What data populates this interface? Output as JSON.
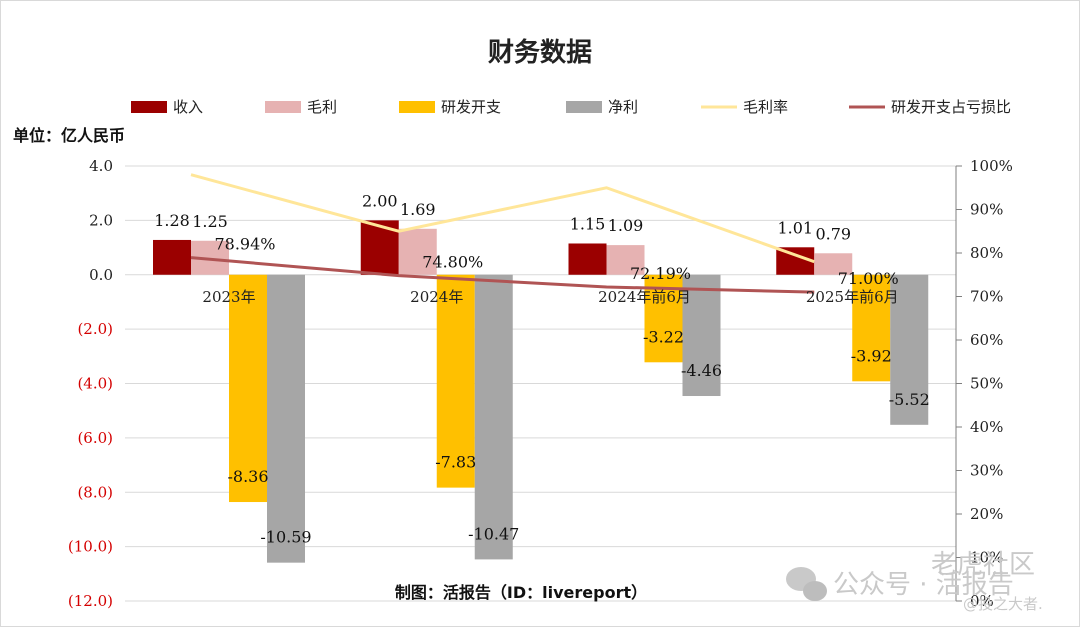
{
  "chart_data": {
    "type": "bar",
    "title": "财务数据",
    "unit_label": "单位：亿人民币",
    "categories": [
      "2023年",
      "2024年",
      "2024年前6月",
      "2025年前6月"
    ],
    "series": [
      {
        "name": "收入",
        "kind": "bar",
        "axis": "left",
        "color": "#9b0000",
        "values": [
          1.28,
          2.0,
          1.15,
          1.01
        ],
        "labels": [
          "1.28",
          "2.00",
          "1.15",
          "1.01"
        ]
      },
      {
        "name": "毛利",
        "kind": "bar",
        "axis": "left",
        "color": "#e6b2b2",
        "values": [
          1.25,
          1.69,
          1.09,
          0.79
        ],
        "labels": [
          "1.25",
          "1.69",
          "1.09",
          "0.79"
        ]
      },
      {
        "name": "研发开支",
        "kind": "bar",
        "axis": "left",
        "color": "#ffc000",
        "values": [
          -8.36,
          -7.83,
          -3.22,
          -3.92
        ],
        "labels": [
          "-8.36",
          "-7.83",
          "-3.22",
          "-3.92"
        ]
      },
      {
        "name": "净利",
        "kind": "bar",
        "axis": "left",
        "color": "#a6a6a6",
        "values": [
          -10.59,
          -10.47,
          -4.46,
          -5.52
        ],
        "labels": [
          "-10.59",
          "-10.47",
          "-4.46",
          "-5.52"
        ]
      },
      {
        "name": "毛利率",
        "kind": "line",
        "axis": "right",
        "color": "#ffe699",
        "values": [
          98,
          85,
          95,
          78
        ],
        "labels": []
      },
      {
        "name": "研发开支占亏损比",
        "kind": "line",
        "axis": "right",
        "color": "#b05454",
        "values": [
          78.94,
          74.8,
          72.19,
          71.0
        ],
        "labels": [
          "78.94%",
          "74.80%",
          "72.19%",
          "71.00%"
        ]
      }
    ],
    "y_left": {
      "min": -12,
      "max": 4,
      "step": 2,
      "ticks": [
        "4.0",
        "2.0",
        "0.0",
        "(2.0)",
        "(4.0)",
        "(6.0)",
        "(8.0)",
        "(10.0)",
        "(12.0)"
      ]
    },
    "y_right": {
      "min": 0,
      "max": 100,
      "step": 10,
      "ticks": [
        "100%",
        "90%",
        "80%",
        "70%",
        "60%",
        "50%",
        "40%",
        "30%",
        "20%",
        "10%",
        "0%"
      ]
    },
    "grid": true,
    "legend_position": "top"
  },
  "footer": "制图：活报告（ID：livereport）",
  "watermark": {
    "brand": "公众号 · 活报告",
    "community": "老虎社区",
    "handle": "@投之大者."
  },
  "colors": {
    "negative_tick": "#d40000",
    "grid": "#d9d9d9"
  }
}
